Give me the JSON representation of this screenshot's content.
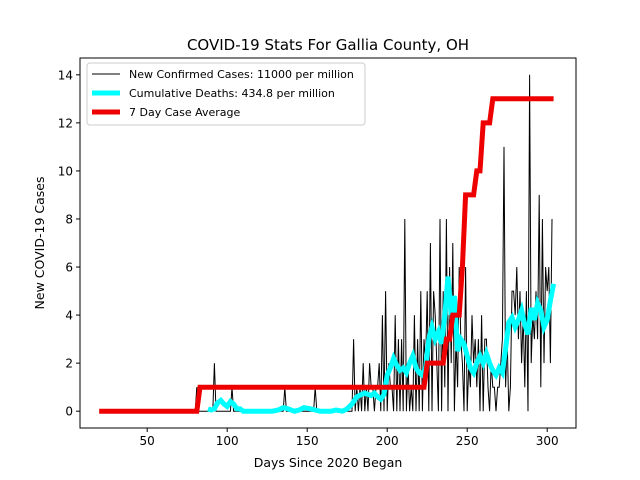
{
  "chart_data": {
    "type": "line",
    "title": "COVID-19 Stats For Gallia County, OH",
    "xlabel": "Days Since 2020 Began",
    "ylabel": "New COVID-19 Cases",
    "xlim": [
      8,
      318
    ],
    "ylim": [
      -0.7,
      14.7
    ],
    "xticks": [
      50,
      100,
      150,
      200,
      250,
      300
    ],
    "yticks": [
      0,
      2,
      4,
      6,
      8,
      10,
      12,
      14
    ],
    "grid": false,
    "legend_position": "top-left",
    "series": [
      {
        "name": "New Confirmed Cases: 11000 per million",
        "color": "#000000",
        "kind": "steps",
        "x": [
          20,
          80,
          81,
          82,
          83,
          84,
          85,
          86,
          87,
          88,
          89,
          90,
          91,
          92,
          93,
          94,
          95,
          96,
          97,
          98,
          99,
          100,
          101,
          102,
          103,
          104,
          105,
          106,
          107,
          108,
          109,
          110,
          111,
          112,
          113,
          114,
          115,
          116,
          117,
          118,
          119,
          120,
          121,
          122,
          123,
          124,
          125,
          126,
          127,
          128,
          129,
          130,
          131,
          132,
          133,
          134,
          135,
          136,
          137,
          138,
          139,
          140,
          141,
          142,
          143,
          144,
          145,
          146,
          147,
          148,
          149,
          150,
          151,
          152,
          153,
          154,
          155,
          156,
          157,
          158,
          159,
          160,
          161,
          162,
          163,
          164,
          165,
          166,
          167,
          168,
          169,
          170,
          171,
          172,
          173,
          174,
          175,
          176,
          177,
          178,
          179,
          180,
          181,
          182,
          183,
          184,
          185,
          186,
          187,
          188,
          189,
          190,
          191,
          192,
          193,
          194,
          195,
          196,
          197,
          198,
          199,
          200,
          201,
          202,
          203,
          204,
          205,
          206,
          207,
          208,
          209,
          210,
          211,
          212,
          213,
          214,
          215,
          216,
          217,
          218,
          219,
          220,
          221,
          222,
          223,
          224,
          225,
          226,
          227,
          228,
          229,
          230,
          231,
          232,
          233,
          234,
          235,
          236,
          237,
          238,
          239,
          240,
          241,
          242,
          243,
          244,
          245,
          246,
          247,
          248,
          249,
          250,
          251,
          252,
          253,
          254,
          255,
          256,
          257,
          258,
          259,
          260,
          261,
          262,
          263,
          264,
          265,
          266,
          267,
          268,
          269,
          270,
          271,
          272,
          273,
          274,
          275,
          276,
          277,
          278,
          279,
          280,
          281,
          282,
          283,
          284,
          285,
          286,
          287,
          288,
          289,
          290,
          291,
          292,
          293,
          294,
          295,
          296,
          297,
          298,
          299,
          300,
          301,
          302,
          303
        ],
        "y": [
          0,
          0,
          1,
          0,
          0,
          0,
          0,
          0,
          0,
          0,
          0,
          0,
          0,
          2,
          0,
          0,
          0,
          0,
          0,
          0,
          0,
          0,
          0,
          0,
          1,
          0,
          0,
          0,
          0,
          0,
          0,
          0,
          0,
          0,
          0,
          0,
          0,
          0,
          0,
          0,
          0,
          0,
          0,
          0,
          0,
          0,
          0,
          0,
          0,
          0,
          0,
          0,
          0,
          0,
          0,
          0,
          0,
          1,
          0,
          0,
          0,
          0,
          0,
          0,
          0,
          0,
          0,
          0,
          0,
          0,
          0,
          0,
          0,
          0,
          0,
          0,
          1,
          0,
          0,
          0,
          0,
          0,
          0,
          0,
          0,
          0,
          0,
          0,
          0,
          0,
          0,
          0,
          0,
          0,
          0,
          0,
          0,
          0,
          0,
          0,
          3,
          0,
          1,
          0,
          1,
          0,
          2,
          0,
          1,
          0,
          2,
          1,
          1,
          0,
          1,
          1,
          2,
          0,
          4,
          0,
          5,
          0,
          2,
          1,
          1,
          0,
          4,
          0,
          3,
          0,
          3,
          0,
          8,
          0,
          2,
          0,
          1,
          0,
          4,
          0,
          3,
          0,
          5,
          0,
          3,
          2,
          5,
          0,
          7,
          0,
          5,
          4,
          2,
          0,
          8,
          0,
          5,
          1,
          8,
          0,
          6,
          2,
          7,
          0,
          3,
          1,
          6,
          3,
          2,
          0,
          6,
          0,
          2,
          1,
          4,
          2,
          3,
          1,
          3,
          0,
          4,
          0,
          3,
          3,
          1,
          0,
          2,
          1,
          1,
          0,
          1,
          1,
          2,
          3,
          11,
          1,
          3,
          0,
          1,
          5,
          5,
          4,
          6,
          3,
          5,
          2,
          4,
          1,
          5,
          0,
          14,
          2,
          4,
          3,
          5,
          3,
          9,
          1,
          8,
          2,
          6,
          5,
          6,
          2,
          8
        ]
      },
      {
        "name": "Cumulative Deaths: 434.8 per million",
        "color": "#00FFFF",
        "kind": "line",
        "x": [
          88,
          90,
          92,
          94,
          96,
          98,
          100,
          102,
          104,
          106,
          108,
          110,
          113,
          116,
          120,
          124,
          128,
          132,
          135,
          138,
          142,
          145,
          148,
          152,
          155,
          158,
          162,
          165,
          168,
          172,
          175,
          178,
          181,
          184,
          186,
          188,
          190,
          192,
          194,
          196,
          198,
          200,
          202,
          204,
          206,
          208,
          210,
          212,
          214,
          216,
          218,
          220,
          222,
          224,
          226,
          228,
          230,
          232,
          234,
          236,
          238,
          240,
          242,
          244,
          246,
          248,
          250,
          252,
          254,
          256,
          258,
          260,
          262,
          264,
          266,
          268,
          270,
          272,
          274,
          276,
          278,
          280,
          282,
          284,
          286,
          288,
          290,
          292,
          294,
          296,
          298,
          300,
          302,
          304
        ],
        "y": [
          0.1,
          0.05,
          0.1,
          0.35,
          0.45,
          0.3,
          0.2,
          0.4,
          0.3,
          0.1,
          0.1,
          0.0,
          0.0,
          0.0,
          0.0,
          0.0,
          0.0,
          0.05,
          0.15,
          0.1,
          0.0,
          0.05,
          0.15,
          0.1,
          0.05,
          0.0,
          0.0,
          0.0,
          0.05,
          0.0,
          0.1,
          0.3,
          0.6,
          0.7,
          0.75,
          0.7,
          0.65,
          0.75,
          0.6,
          0.5,
          0.7,
          1.5,
          1.8,
          2.2,
          1.9,
          1.7,
          1.8,
          1.6,
          2.0,
          2.3,
          1.8,
          1.6,
          1.5,
          1.8,
          3.0,
          3.5,
          3.0,
          3.3,
          2.8,
          4.0,
          5.6,
          4.0,
          4.8,
          2.5,
          3.0,
          2.8,
          2.3,
          1.8,
          1.6,
          2.0,
          2.3,
          2.0,
          2.4,
          2.0,
          1.7,
          1.5,
          1.8,
          1.6,
          2.6,
          3.7,
          3.9,
          3.5,
          3.8,
          4.2,
          3.6,
          3.2,
          4.3,
          3.8,
          4.5,
          4.2,
          3.5,
          3.8,
          4.6,
          5.3
        ]
      },
      {
        "name": "7 Day Case Average",
        "color": "#EE0000",
        "kind": "line",
        "x": [
          20,
          81,
          83,
          223,
          225,
          235,
          237,
          239,
          241,
          245,
          247,
          249,
          251,
          254,
          256,
          258,
          260,
          262,
          264,
          266,
          268,
          270,
          304
        ],
        "y": [
          0,
          0,
          1,
          1,
          2,
          2,
          3,
          3,
          4,
          4,
          6,
          9,
          9,
          9,
          10,
          10,
          12,
          12,
          12,
          13,
          13,
          13,
          13
        ]
      }
    ]
  }
}
